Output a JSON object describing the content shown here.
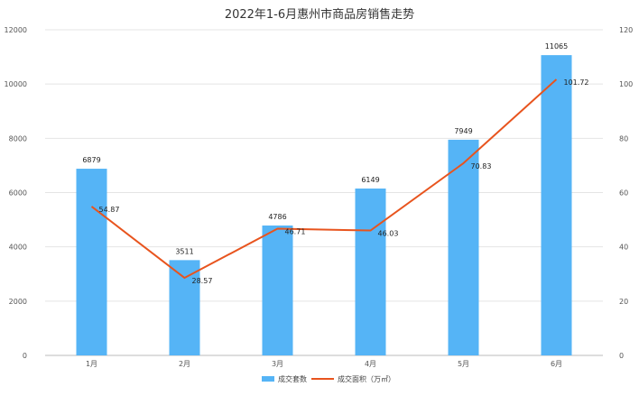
{
  "chart_data": {
    "type": "bar",
    "title": "2022年1-6月惠州市商品房销售走势",
    "categories": [
      "1月",
      "2月",
      "3月",
      "4月",
      "5月",
      "6月"
    ],
    "series": [
      {
        "name": "成交套数",
        "type": "bar",
        "axis": "left",
        "color": "#55b4f6",
        "values": [
          6879,
          3511,
          4786,
          6149,
          7949,
          11065
        ]
      },
      {
        "name": "成交面积（万㎡）",
        "type": "line",
        "axis": "right",
        "color": "#e8541e",
        "values": [
          54.87,
          28.57,
          46.71,
          46.03,
          70.83,
          101.72
        ]
      }
    ],
    "y_left": {
      "min": 0,
      "max": 12000,
      "ticks": [
        "0",
        "2000",
        "4000",
        "6000",
        "8000",
        "10000",
        "12000"
      ]
    },
    "y_right": {
      "min": 0,
      "max": 120,
      "ticks": [
        "0",
        "20",
        "40",
        "60",
        "80",
        "100",
        "120"
      ]
    },
    "grid": true,
    "legend_position": "bottom"
  }
}
